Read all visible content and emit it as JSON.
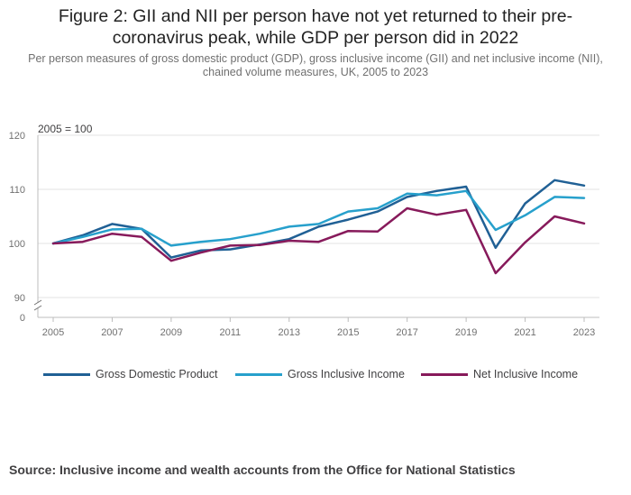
{
  "header": {
    "title": "Figure 2: GII and NII per person have not yet returned to their pre-coronavirus peak, while GDP per person did in 2022",
    "subtitle": "Per person measures of gross domestic product (GDP), gross inclusive income (GII) and net inclusive income (NII), chained volume measures, UK, 2005 to 2023"
  },
  "source": "Source: Inclusive income and wealth accounts from the Office for National Statistics",
  "chart_data": {
    "type": "line",
    "title": "Figure 2: GII and NII per person have not yet returned to their pre-coronavirus peak, while GDP per person did in 2022",
    "annotation": "2005 = 100",
    "xlabel": "",
    "ylabel": "",
    "x": [
      2005,
      2006,
      2007,
      2008,
      2009,
      2010,
      2011,
      2012,
      2013,
      2014,
      2015,
      2016,
      2017,
      2018,
      2019,
      2020,
      2021,
      2022,
      2023
    ],
    "x_ticks": [
      "2005",
      "2007",
      "2009",
      "2011",
      "2013",
      "2015",
      "2017",
      "2019",
      "2021",
      "2023"
    ],
    "y_ticks": [
      "90",
      "100",
      "110",
      "120"
    ],
    "y_break_label": "0",
    "ylim": [
      90,
      120
    ],
    "grid": true,
    "legend_position": "bottom",
    "series": [
      {
        "name": "Gross Domestic Product",
        "color": "#206095",
        "values": [
          100,
          101.5,
          103.6,
          102.7,
          97.4,
          98.7,
          98.9,
          99.8,
          100.8,
          103.1,
          104.4,
          105.9,
          108.6,
          109.7,
          110.5,
          99.2,
          107.4,
          111.7,
          110.7
        ]
      },
      {
        "name": "Gross Inclusive Income",
        "color": "#27a0cc",
        "values": [
          100,
          101.2,
          102.6,
          102.7,
          99.6,
          100.3,
          100.8,
          101.8,
          103.1,
          103.6,
          105.9,
          106.5,
          109.2,
          108.9,
          109.7,
          102.5,
          105.2,
          108.6,
          108.4
        ]
      },
      {
        "name": "Net Inclusive Income",
        "color": "#871a5b",
        "values": [
          100,
          100.3,
          101.8,
          101.2,
          96.8,
          98.3,
          99.6,
          99.7,
          100.5,
          100.3,
          102.3,
          102.2,
          106.5,
          105.3,
          106.2,
          94.5,
          100.2,
          105.0,
          103.7
        ]
      }
    ]
  }
}
